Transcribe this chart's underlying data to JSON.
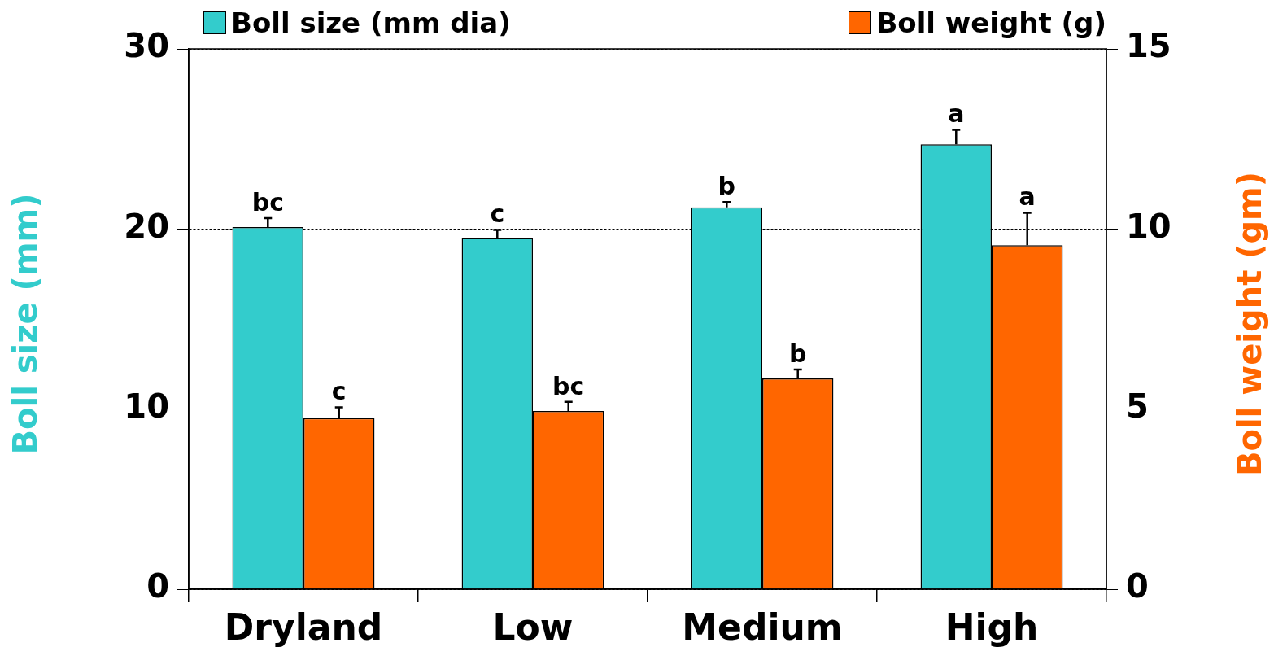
{
  "chart_data": {
    "type": "bar",
    "categories": [
      "Dryland",
      "Low",
      "Medium",
      "High"
    ],
    "ylabel": "Boll size (mm)",
    "y2label": "Boll weight (gm)",
    "ylim": [
      0,
      30
    ],
    "yticks": [
      0,
      10,
      20,
      30
    ],
    "y2lim": [
      0,
      15
    ],
    "y2ticks": [
      0,
      5,
      10,
      15
    ],
    "grid": "y",
    "legend": "top",
    "series": [
      {
        "name": "Boll size (mm dia)",
        "color": "#33cccc",
        "values": [
          20.1,
          19.5,
          21.2,
          24.7
        ],
        "errors": [
          0.5,
          0.45,
          0.3,
          0.8
        ],
        "value_labels": [
          "bc",
          "c",
          "b",
          "a"
        ]
      },
      {
        "name": "Boll weight (g)",
        "color": "#ff6600",
        "axis": "y2",
        "values": [
          4.75,
          4.95,
          5.85,
          9.55
        ],
        "errors": [
          0.3,
          0.25,
          0.25,
          0.9
        ],
        "value_labels": [
          "c",
          "bc",
          "b",
          "a"
        ]
      }
    ]
  }
}
